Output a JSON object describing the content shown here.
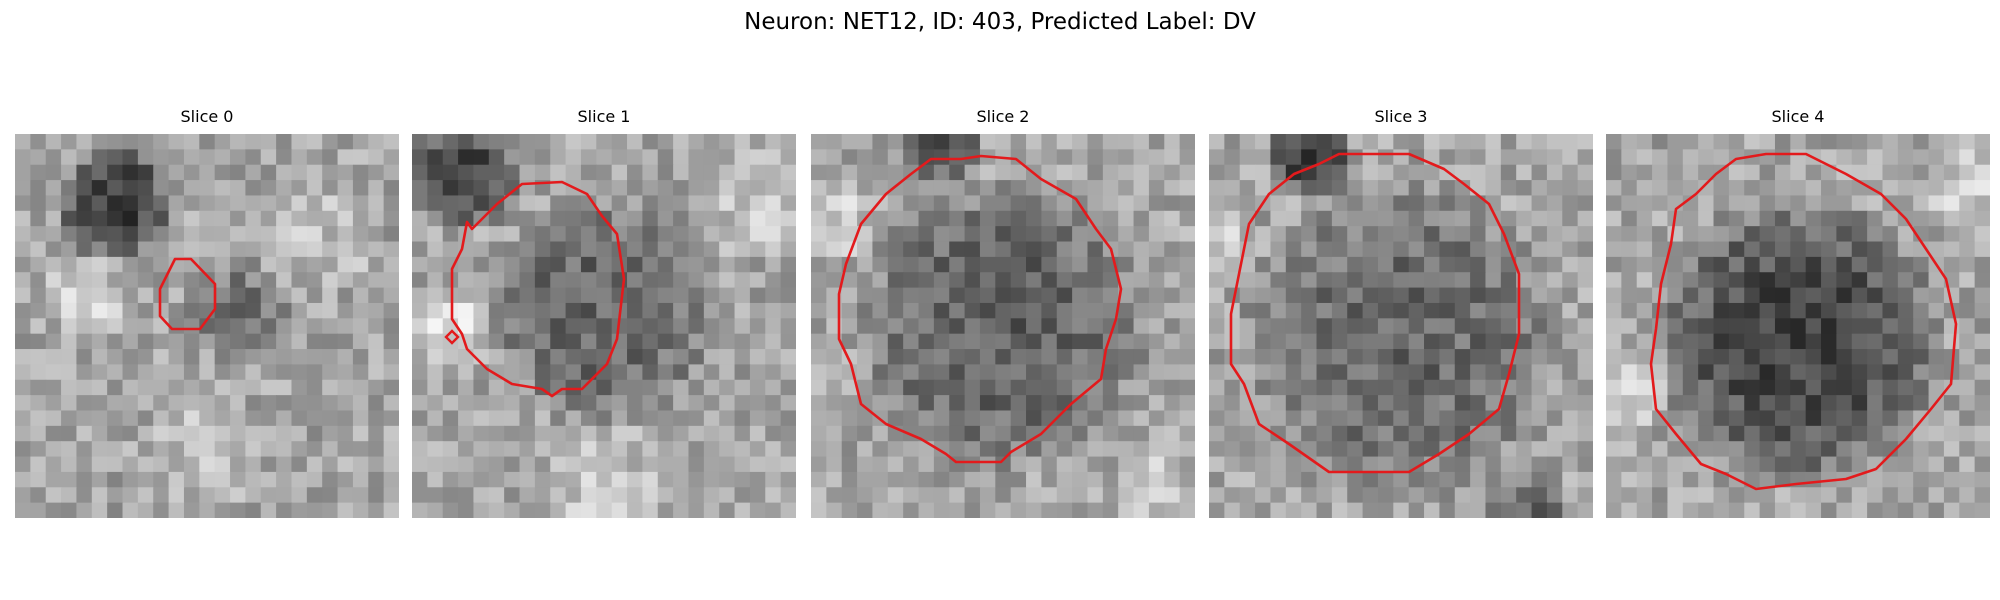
{
  "figure": {
    "title": "Neuron: NET12, ID: 403, Predicted Label: DV"
  },
  "contour_color": "#e31a1c",
  "panels": [
    {
      "title": "Slice 0"
    },
    {
      "title": "Slice 1"
    },
    {
      "title": "Slice 2"
    },
    {
      "title": "Slice 3"
    },
    {
      "title": "Slice 4"
    }
  ]
}
